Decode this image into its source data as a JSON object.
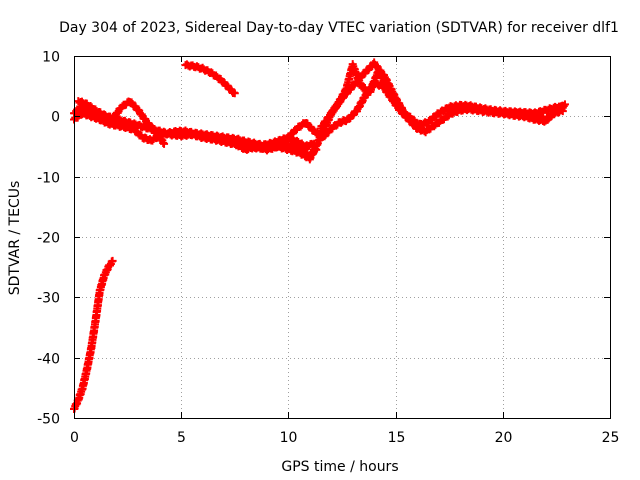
{
  "chart_data": {
    "type": "scatter",
    "title": "Day 304 of 2023, Sidereal Day-to-day VTEC variation (SDTVAR) for receiver dlf1",
    "xlabel": "GPS time / hours",
    "ylabel": "SDTVAR / TECUs",
    "xlim": [
      0,
      25
    ],
    "ylim": [
      -50,
      10
    ],
    "xticks": [
      0,
      5,
      10,
      15,
      20,
      25
    ],
    "yticks": [
      -50,
      -40,
      -30,
      -20,
      -10,
      0,
      10
    ],
    "grid": true,
    "series": [
      {
        "name": "SDTVAR",
        "color": "#ff0000",
        "marker": "plus",
        "tracks": [
          {
            "x": [
              0.0,
              0.2,
              0.4,
              0.6,
              0.8,
              1.0,
              1.2,
              1.4,
              1.6,
              1.8
            ],
            "y": [
              -48.5,
              -47,
              -45,
              -42,
              -38.5,
              -34,
              -29,
              -26.5,
              -25,
              -24
            ]
          },
          {
            "x": [
              5.2,
              5.6,
              6.0,
              6.4,
              6.8,
              7.2,
              7.5
            ],
            "y": [
              8.5,
              8.3,
              7.9,
              7.2,
              6.2,
              4.8,
              3.7
            ]
          },
          {
            "x": [
              0.0,
              0.3,
              0.6,
              1.0,
              1.5,
              2.0,
              2.5,
              3.0,
              3.5,
              4.0,
              4.5,
              5.0,
              5.5,
              6.0,
              6.5,
              7.0,
              7.5,
              8.0,
              8.5,
              9.0,
              9.5,
              10.0,
              10.5,
              11.0,
              11.3
            ],
            "y": [
              0.5,
              1.5,
              1.0,
              0.5,
              0.0,
              -0.5,
              -1.0,
              -1.5,
              -2.0,
              -2.5,
              -3.0,
              -3.2,
              -3.0,
              -3.5,
              -3.8,
              -4.2,
              -4.6,
              -5.0,
              -5.2,
              -5.3,
              -5.0,
              -4.8,
              -5.5,
              -6.5,
              -5.5
            ]
          },
          {
            "x": [
              0.0,
              0.4,
              0.8,
              1.2,
              1.6,
              2.0,
              2.4,
              2.8,
              3.2,
              3.6,
              4.0,
              4.4,
              4.8,
              5.2,
              5.6,
              6.0,
              6.4,
              6.8,
              7.2,
              7.6,
              8.0,
              8.4,
              8.8,
              9.2,
              9.6,
              10.0,
              10.4,
              10.8,
              11.2
            ],
            "y": [
              -0.5,
              0.5,
              0.0,
              -0.5,
              -1.2,
              -1.5,
              -1.8,
              -2.2,
              -3.5,
              -4.0,
              -3.2,
              -2.8,
              -2.5,
              -2.5,
              -2.8,
              -3.0,
              -3.2,
              -3.4,
              -3.6,
              -3.8,
              -4.2,
              -4.5,
              -4.8,
              -4.5,
              -4.0,
              -3.5,
              -4.2,
              -5.0,
              -4.5
            ]
          },
          {
            "x": [
              0.2,
              0.6,
              1.0,
              1.4,
              1.8,
              2.2,
              2.6,
              3.0,
              3.4,
              3.8,
              4.2
            ],
            "y": [
              2.5,
              2.0,
              1.0,
              0.2,
              -0.5,
              1.5,
              2.5,
              1.0,
              -1.0,
              -2.5,
              -4.5
            ]
          },
          {
            "x": [
              7.5,
              8.0,
              8.5,
              9.0,
              9.5,
              10.0,
              10.5,
              11.0,
              11.5,
              12.0,
              12.5,
              13.0,
              13.5,
              14.0,
              14.5,
              15.0,
              15.5,
              16.0,
              16.5,
              17.0,
              17.5,
              18.0,
              18.5,
              19.0,
              19.5,
              20.0,
              20.5,
              21.0,
              21.5,
              22.0,
              22.5,
              22.8
            ],
            "y": [
              -4.5,
              -5.5,
              -5.0,
              -5.5,
              -5.0,
              -5.5,
              -6.0,
              -7.0,
              -3.5,
              0.5,
              3.0,
              5.0,
              7.0,
              8.8,
              6.5,
              3.0,
              0.0,
              -1.5,
              -1.0,
              0.5,
              1.5,
              1.8,
              1.7,
              1.3,
              1.0,
              0.8,
              0.7,
              0.6,
              0.5,
              1.0,
              1.5,
              1.5
            ]
          },
          {
            "x": [
              10.0,
              10.4,
              10.8,
              11.2,
              11.6,
              12.0,
              12.4,
              12.8,
              13.2,
              13.6,
              14.0,
              14.4,
              14.8,
              15.2,
              15.6,
              16.0,
              16.4,
              16.8,
              17.2,
              17.6,
              18.0,
              18.4,
              18.8,
              19.2,
              19.6,
              20.0,
              20.4,
              20.8,
              21.2,
              21.6,
              22.0,
              22.4,
              22.8
            ],
            "y": [
              -3.5,
              -2.0,
              -1.0,
              -2.5,
              -3.5,
              -2.0,
              -1.0,
              -0.5,
              1.0,
              3.5,
              5.5,
              5.0,
              3.0,
              1.0,
              -0.5,
              -2.0,
              -2.5,
              -1.5,
              -0.5,
              0.5,
              1.0,
              1.2,
              1.0,
              0.8,
              0.6,
              0.5,
              0.5,
              0.4,
              0.3,
              0.0,
              -0.5,
              0.5,
              1.0
            ]
          },
          {
            "x": [
              11.5,
              11.9,
              12.3,
              12.7,
              13.0,
              13.4,
              13.8,
              14.2,
              14.6,
              15.0,
              15.4,
              15.8,
              16.2
            ],
            "y": [
              -2.0,
              0.0,
              2.0,
              4.5,
              8.5,
              5.0,
              4.0,
              7.5,
              5.0,
              2.5,
              0.5,
              -0.5,
              -2.0
            ]
          },
          {
            "x": [
              20.0,
              20.5,
              21.0,
              21.5,
              22.0,
              22.5,
              22.9
            ],
            "y": [
              0.5,
              0.2,
              0.0,
              -0.5,
              -0.8,
              1.0,
              2.0
            ]
          }
        ]
      }
    ]
  }
}
